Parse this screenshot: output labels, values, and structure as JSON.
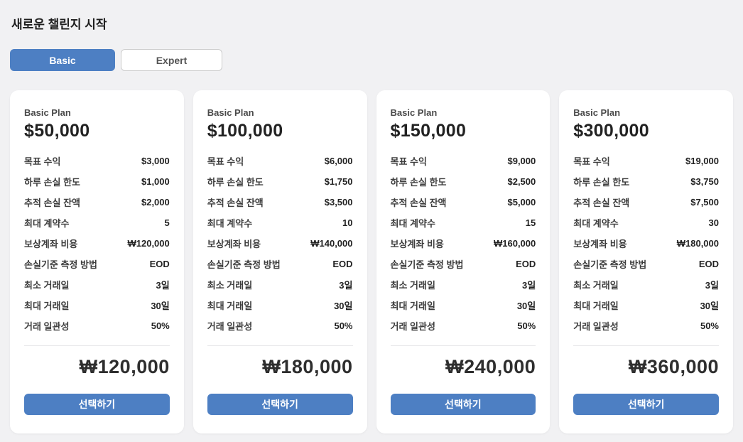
{
  "colors": {
    "accent_blue": "#4d7fc3",
    "page_background": "#f1f1f3",
    "card_background": "#ffffff"
  },
  "header": {
    "title": "새로운 챌린지 시작"
  },
  "tabs": {
    "basic_label": "Basic",
    "expert_label": "Expert",
    "active_tab": "Basic"
  },
  "spec_labels": [
    "목표 수익",
    "하루 손실 한도",
    "추적 손실 잔액",
    "최대 계약수",
    "보상계좌 비용",
    "손실기준 측정 방법",
    "최소 거래일",
    "최대 거래일",
    "거래 일관성"
  ],
  "plans": [
    {
      "name": "Basic Plan",
      "amount": "$50,000",
      "specs": [
        "$3,000",
        "$1,000",
        "$2,000",
        "5",
        "₩120,000",
        "EOD",
        "3일",
        "30일",
        "50%"
      ],
      "price": "₩120,000",
      "select_label": "선택하기"
    },
    {
      "name": "Basic Plan",
      "amount": "$100,000",
      "specs": [
        "$6,000",
        "$1,750",
        "$3,500",
        "10",
        "₩140,000",
        "EOD",
        "3일",
        "30일",
        "50%"
      ],
      "price": "₩180,000",
      "select_label": "선택하기"
    },
    {
      "name": "Basic Plan",
      "amount": "$150,000",
      "specs": [
        "$9,000",
        "$2,500",
        "$5,000",
        "15",
        "₩160,000",
        "EOD",
        "3일",
        "30일",
        "50%"
      ],
      "price": "₩240,000",
      "select_label": "선택하기"
    },
    {
      "name": "Basic Plan",
      "amount": "$300,000",
      "specs": [
        "$19,000",
        "$3,750",
        "$7,500",
        "30",
        "₩180,000",
        "EOD",
        "3일",
        "30일",
        "50%"
      ],
      "price": "₩360,000",
      "select_label": "선택하기"
    }
  ]
}
